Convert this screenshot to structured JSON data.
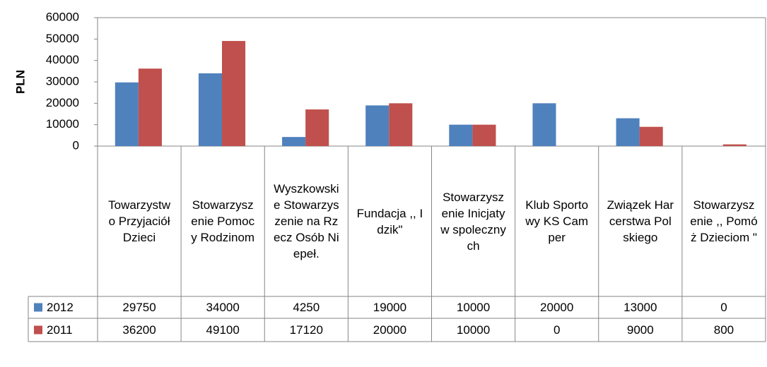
{
  "chart_data": {
    "type": "bar",
    "y_label": "PLN",
    "categories": [
      "Towarzystwo Przyjaciół Dzieci",
      "Stowarzyszenie Pomocy Rodzinom",
      "Wyszkowskie Stowarzyszenie na Rzecz Osób Niepeł.",
      "Fundacja ,, Idzik\"",
      "Stowarzyszenie Inicjatyw spolecznych",
      "Klub Sportowy KS Camper",
      "Związek Harcerstwa Polskiego",
      "Stowarzyszenie ,, Pomóż Dzieciom \""
    ],
    "series": [
      {
        "name": "2012",
        "color": "#4f81bd",
        "values": [
          29750,
          34000,
          4250,
          19000,
          10000,
          20000,
          13000,
          0
        ]
      },
      {
        "name": "2011",
        "color": "#c0504d",
        "values": [
          36200,
          49100,
          17120,
          20000,
          10000,
          0,
          9000,
          800
        ]
      }
    ],
    "ylim": [
      0,
      60000
    ],
    "yticks": [
      0,
      10000,
      20000,
      30000,
      40000,
      50000,
      60000
    ],
    "grid": false
  }
}
